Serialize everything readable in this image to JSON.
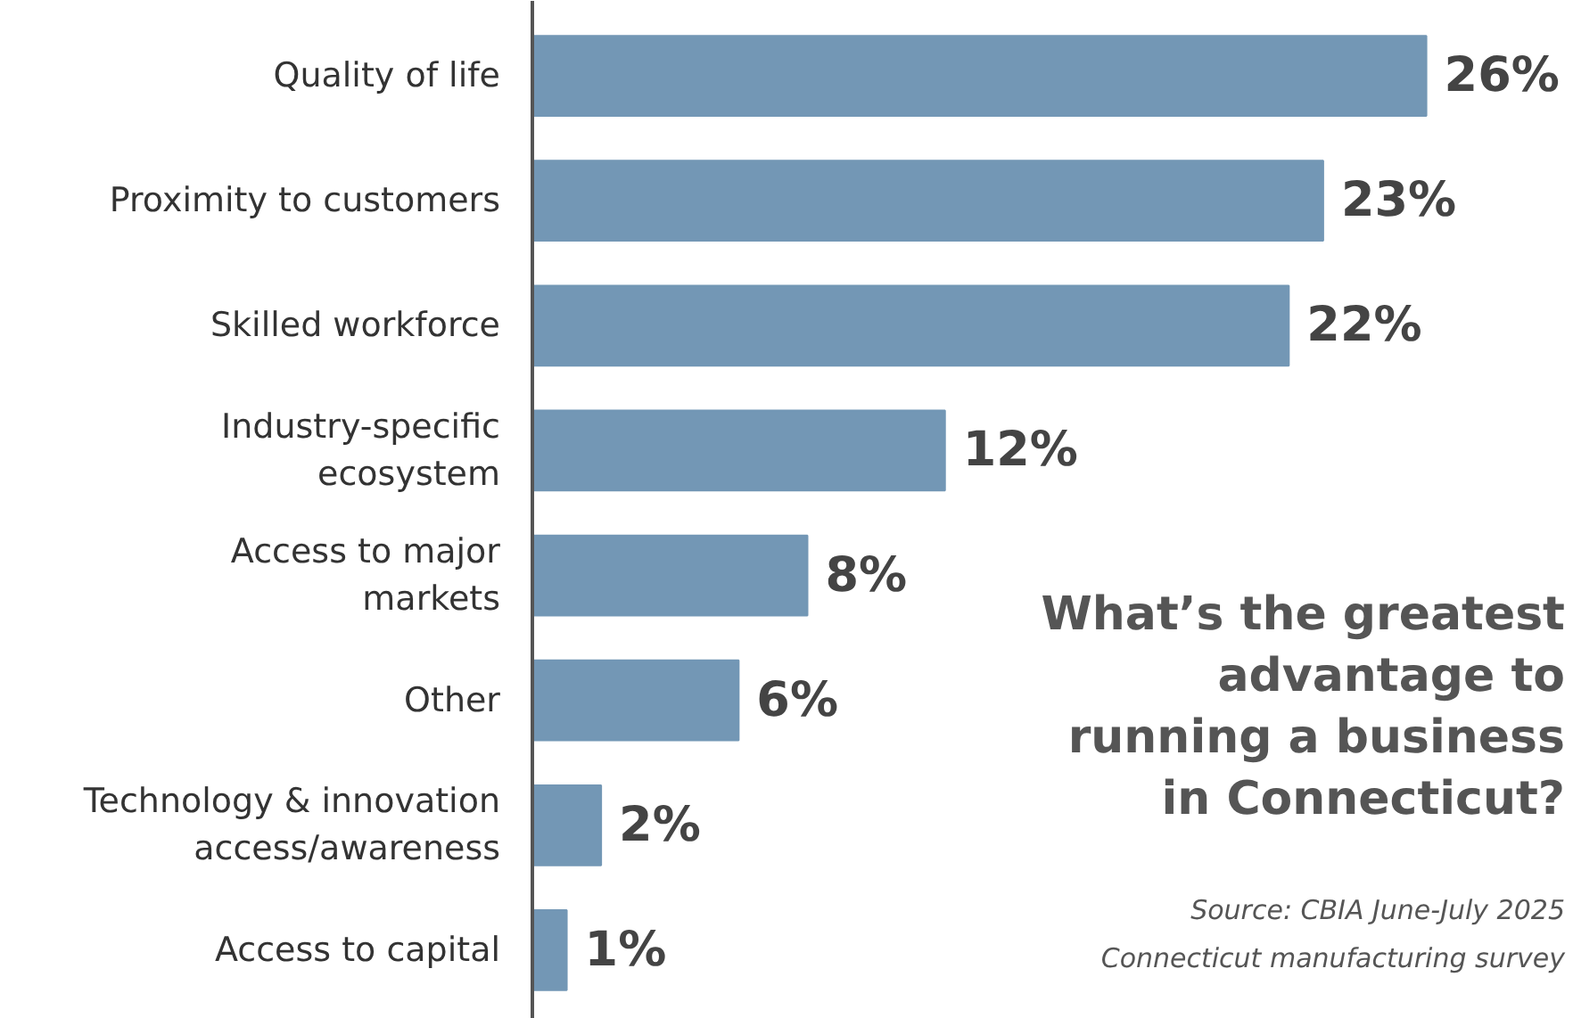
{
  "chart_data": {
    "type": "bar",
    "orientation": "horizontal",
    "title": "What’s the greatest\nadvantage to\nrunning a business\nin Connecticut?",
    "categories": [
      "Quality of life",
      "Proximity to customers",
      "Skilled workforce",
      "Industry-specific\necosystem",
      "Access to major\nmarkets",
      "Other",
      "Technology & innovation\naccess/awareness",
      "Access to capital"
    ],
    "values": [
      26,
      23,
      22,
      12,
      8,
      6,
      2,
      1
    ],
    "color": "#7397b5",
    "data_labels": true,
    "value_labels": [
      "26%",
      "23%",
      "22%",
      "12%",
      "8%",
      "6%",
      "2%",
      "1%"
    ],
    "grid": false,
    "annotations": [
      "Source: CBIA June-July 2025\nConnecticut manufacturing survey"
    ]
  }
}
